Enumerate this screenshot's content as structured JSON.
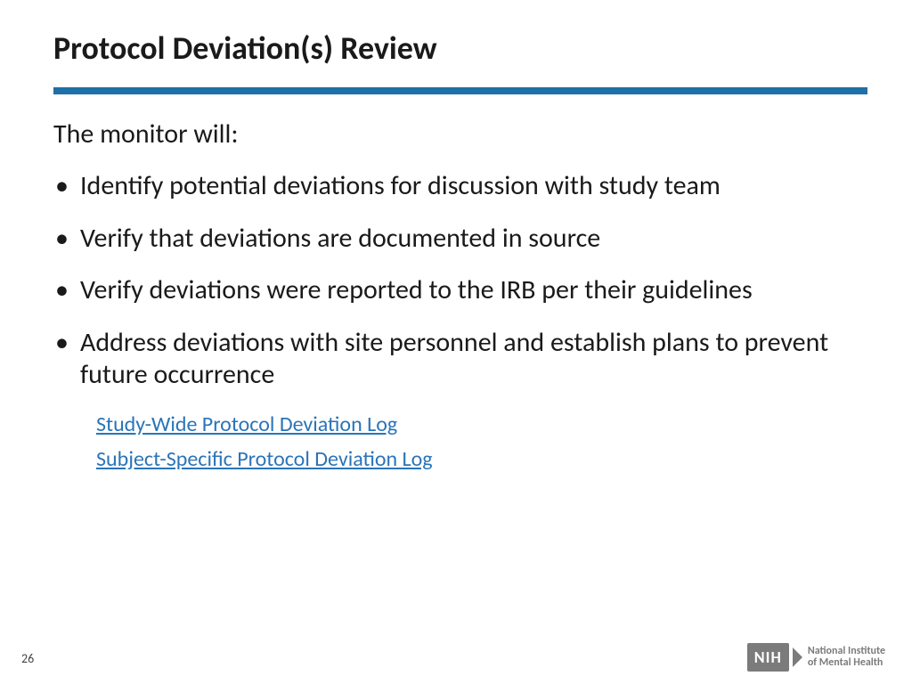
{
  "title": "Protocol Deviation(s) Review",
  "rule_color": "#1f6fa8",
  "intro": "The monitor will:",
  "bullets": [
    "Identify potential deviations for discussion with study team",
    "Verify that deviations are documented in source",
    "Verify deviations were reported to the IRB per their guidelines",
    "Address deviations with site personnel and establish plans to prevent future occurrence"
  ],
  "links": [
    "Study-Wide Protocol Deviation Log",
    "Subject-Specific Protocol Deviation Log"
  ],
  "page_number": "26",
  "logo": {
    "abbr": "NIH",
    "line1": "National Institute",
    "line2": "of Mental Health"
  },
  "link_color": "#2a74b8"
}
